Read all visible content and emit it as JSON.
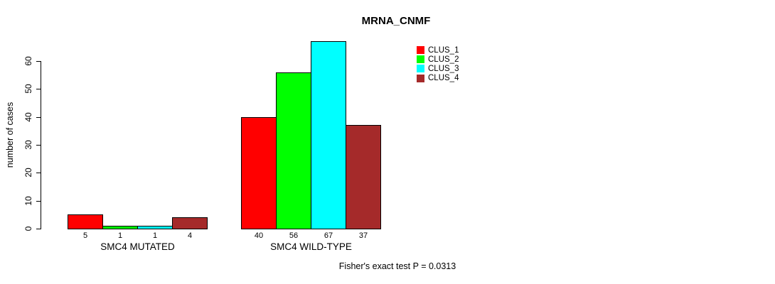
{
  "chart_data": {
    "type": "bar",
    "title": "MRNA_CNMF",
    "ylabel": "number of cases",
    "xlabel": "",
    "ylim": [
      0,
      67
    ],
    "yticks": [
      0,
      10,
      20,
      30,
      40,
      50,
      60
    ],
    "grid": false,
    "legend_position": "top-right",
    "categories": [
      "SMC4 MUTATED",
      "SMC4 WILD-TYPE"
    ],
    "series": [
      {
        "name": "CLUS_1",
        "color": "#ff0000",
        "values": [
          5,
          40
        ]
      },
      {
        "name": "CLUS_2",
        "color": "#00ff00",
        "values": [
          1,
          56
        ]
      },
      {
        "name": "CLUS_3",
        "color": "#00ffff",
        "values": [
          1,
          67
        ]
      },
      {
        "name": "CLUS_4",
        "color": "#a52a2a",
        "values": [
          4,
          37
        ]
      }
    ],
    "bar_value_labels": [
      [
        5,
        1,
        1,
        4
      ],
      [
        40,
        56,
        67,
        37
      ]
    ],
    "annotation": "Fisher's exact test P = 0.0313",
    "axis_color": "#000000",
    "bar_border_color": "#000000",
    "background_color": "#ffffff"
  }
}
